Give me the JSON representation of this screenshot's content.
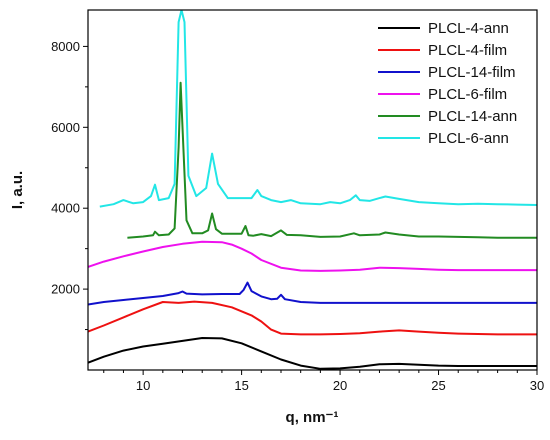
{
  "chart_data": {
    "type": "line",
    "title": "",
    "xlabel": "q, nm⁻¹",
    "ylabel": "I, a.u.",
    "xlim": [
      7.2,
      30
    ],
    "ylim": [
      0,
      8900
    ],
    "x_ticks": [
      10,
      15,
      20,
      25,
      30
    ],
    "y_ticks": [
      2000,
      4000,
      6000,
      8000
    ],
    "grid": false,
    "legend_position": "top-right",
    "series": [
      {
        "name": "PLCL-4-ann",
        "color": "#000000",
        "points": [
          [
            7.2,
            180
          ],
          [
            8,
            330
          ],
          [
            9,
            480
          ],
          [
            10,
            580
          ],
          [
            11,
            650
          ],
          [
            12,
            720
          ],
          [
            13,
            790
          ],
          [
            14,
            780
          ],
          [
            15,
            660
          ],
          [
            16,
            460
          ],
          [
            17,
            260
          ],
          [
            18,
            110
          ],
          [
            19,
            30
          ],
          [
            20,
            40
          ],
          [
            21,
            80
          ],
          [
            22,
            140
          ],
          [
            23,
            150
          ],
          [
            24,
            130
          ],
          [
            25,
            110
          ],
          [
            26,
            100
          ],
          [
            27,
            100
          ],
          [
            28,
            100
          ],
          [
            29,
            100
          ],
          [
            30,
            100
          ]
        ]
      },
      {
        "name": "PLCL-4-film",
        "color": "#ee1111",
        "points": [
          [
            7.2,
            950
          ],
          [
            8,
            1100
          ],
          [
            9,
            1300
          ],
          [
            10,
            1500
          ],
          [
            11,
            1680
          ],
          [
            11.8,
            1660
          ],
          [
            12.6,
            1690
          ],
          [
            13.5,
            1660
          ],
          [
            14.5,
            1550
          ],
          [
            15.5,
            1350
          ],
          [
            16,
            1200
          ],
          [
            16.5,
            1000
          ],
          [
            17,
            900
          ],
          [
            18,
            880
          ],
          [
            19,
            880
          ],
          [
            20,
            890
          ],
          [
            21,
            910
          ],
          [
            22,
            950
          ],
          [
            23,
            980
          ],
          [
            24,
            950
          ],
          [
            25,
            920
          ],
          [
            26,
            900
          ],
          [
            27,
            890
          ],
          [
            28,
            880
          ],
          [
            29,
            880
          ],
          [
            30,
            880
          ]
        ]
      },
      {
        "name": "PLCL-14-film",
        "color": "#1111cc",
        "points": [
          [
            7.2,
            1620
          ],
          [
            8,
            1680
          ],
          [
            9,
            1730
          ],
          [
            10,
            1780
          ],
          [
            11,
            1830
          ],
          [
            11.8,
            1900
          ],
          [
            12,
            1940
          ],
          [
            12.2,
            1890
          ],
          [
            13,
            1870
          ],
          [
            14,
            1880
          ],
          [
            14.9,
            1880
          ],
          [
            15.1,
            1980
          ],
          [
            15.3,
            2160
          ],
          [
            15.5,
            1950
          ],
          [
            16,
            1820
          ],
          [
            16.5,
            1750
          ],
          [
            16.8,
            1760
          ],
          [
            17,
            1860
          ],
          [
            17.2,
            1750
          ],
          [
            18,
            1680
          ],
          [
            19,
            1660
          ],
          [
            20,
            1660
          ],
          [
            22,
            1660
          ],
          [
            25,
            1660
          ],
          [
            28,
            1660
          ],
          [
            30,
            1660
          ]
        ]
      },
      {
        "name": "PLCL-6-film",
        "color": "#ee11ee",
        "points": [
          [
            7.2,
            2550
          ],
          [
            8,
            2680
          ],
          [
            9,
            2810
          ],
          [
            10,
            2930
          ],
          [
            11,
            3040
          ],
          [
            12,
            3120
          ],
          [
            13,
            3170
          ],
          [
            14,
            3160
          ],
          [
            14.5,
            3100
          ],
          [
            15,
            3000
          ],
          [
            15.5,
            2880
          ],
          [
            16,
            2720
          ],
          [
            17,
            2530
          ],
          [
            18,
            2460
          ],
          [
            19,
            2450
          ],
          [
            20,
            2460
          ],
          [
            21,
            2480
          ],
          [
            22,
            2530
          ],
          [
            23,
            2520
          ],
          [
            24,
            2500
          ],
          [
            25,
            2480
          ],
          [
            26,
            2470
          ],
          [
            28,
            2470
          ],
          [
            30,
            2470
          ]
        ]
      },
      {
        "name": "PLCL-14-ann",
        "color": "#228b22",
        "points": [
          [
            9.2,
            3270
          ],
          [
            10,
            3300
          ],
          [
            10.5,
            3330
          ],
          [
            10.6,
            3420
          ],
          [
            10.8,
            3330
          ],
          [
            11.3,
            3350
          ],
          [
            11.6,
            3500
          ],
          [
            11.8,
            5500
          ],
          [
            11.9,
            7100
          ],
          [
            12,
            6000
          ],
          [
            12.2,
            3700
          ],
          [
            12.5,
            3380
          ],
          [
            13,
            3380
          ],
          [
            13.3,
            3450
          ],
          [
            13.5,
            3870
          ],
          [
            13.7,
            3480
          ],
          [
            14,
            3370
          ],
          [
            15,
            3370
          ],
          [
            15.2,
            3560
          ],
          [
            15.35,
            3330
          ],
          [
            15.6,
            3320
          ],
          [
            16,
            3360
          ],
          [
            16.5,
            3310
          ],
          [
            17,
            3450
          ],
          [
            17.3,
            3340
          ],
          [
            18,
            3330
          ],
          [
            19,
            3290
          ],
          [
            20,
            3300
          ],
          [
            20.7,
            3380
          ],
          [
            21,
            3330
          ],
          [
            22,
            3350
          ],
          [
            22.3,
            3400
          ],
          [
            23,
            3350
          ],
          [
            24,
            3300
          ],
          [
            25,
            3300
          ],
          [
            26,
            3290
          ],
          [
            27,
            3280
          ],
          [
            28,
            3270
          ],
          [
            29,
            3270
          ],
          [
            30,
            3270
          ]
        ]
      },
      {
        "name": "PLCL-6-ann",
        "color": "#22e6e6",
        "points": [
          [
            7.8,
            4040
          ],
          [
            8.5,
            4100
          ],
          [
            9,
            4200
          ],
          [
            9.5,
            4120
          ],
          [
            10,
            4150
          ],
          [
            10.4,
            4300
          ],
          [
            10.6,
            4580
          ],
          [
            10.8,
            4200
          ],
          [
            11.3,
            4250
          ],
          [
            11.6,
            4600
          ],
          [
            11.8,
            8600
          ],
          [
            11.95,
            8900
          ],
          [
            12.1,
            8600
          ],
          [
            12.3,
            4800
          ],
          [
            12.7,
            4300
          ],
          [
            13.2,
            4500
          ],
          [
            13.5,
            5350
          ],
          [
            13.8,
            4600
          ],
          [
            14.3,
            4250
          ],
          [
            15,
            4250
          ],
          [
            15.5,
            4250
          ],
          [
            15.8,
            4450
          ],
          [
            16,
            4300
          ],
          [
            16.5,
            4200
          ],
          [
            17,
            4150
          ],
          [
            17.5,
            4200
          ],
          [
            18,
            4120
          ],
          [
            19,
            4100
          ],
          [
            19.5,
            4150
          ],
          [
            20,
            4120
          ],
          [
            20.5,
            4200
          ],
          [
            20.8,
            4320
          ],
          [
            21,
            4200
          ],
          [
            21.5,
            4180
          ],
          [
            22,
            4250
          ],
          [
            22.3,
            4290
          ],
          [
            23,
            4230
          ],
          [
            24,
            4150
          ],
          [
            25,
            4120
          ],
          [
            26,
            4100
          ],
          [
            27,
            4110
          ],
          [
            28,
            4100
          ],
          [
            29,
            4090
          ],
          [
            30,
            4080
          ]
        ]
      }
    ]
  }
}
